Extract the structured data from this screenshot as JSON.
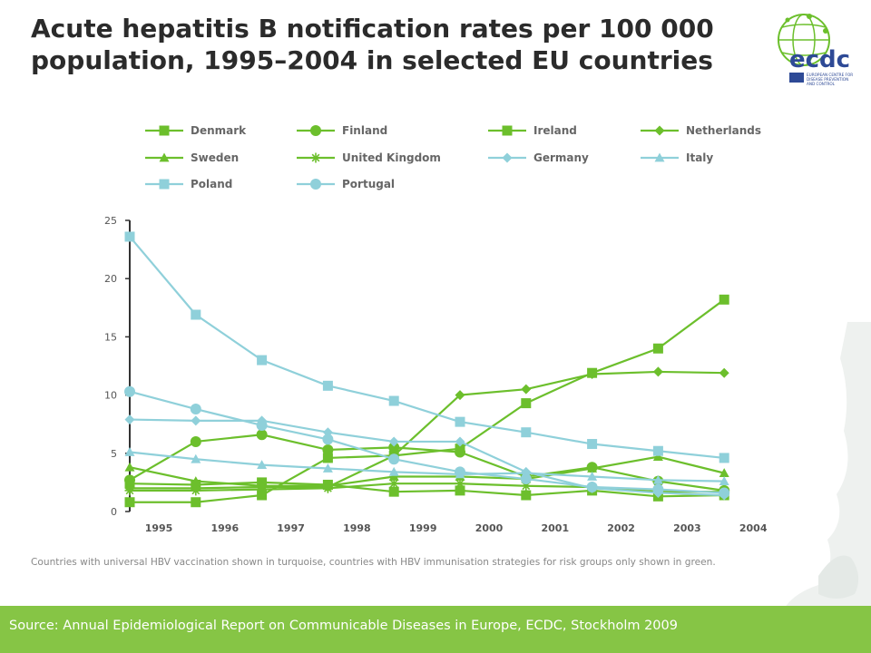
{
  "slide": {
    "title_line1": "Acute hepatitis B notification rates per 100 000",
    "title_line2": "population, 1995–2004 in selected EU countries",
    "source": "Source: Annual Epidemiological Report on Communicable Diseases in Europe, ECDC, Stockholm 2009"
  },
  "logo": {
    "text": "ecdc",
    "subtext": [
      "EUROPEAN CENTRE FOR",
      "DISEASE PREVENTION",
      "AND CONTROL"
    ],
    "brand_color": "#2e4a96",
    "green": "#86c545"
  },
  "colors": {
    "green": "#6cbf2c",
    "turquoise": "#8fd0da",
    "footer": "#86c545"
  },
  "chart_data": {
    "type": "line",
    "title": "",
    "xlabel": "",
    "ylabel": "",
    "x": [
      1995,
      1996,
      1997,
      1998,
      1999,
      2000,
      2001,
      2002,
      2003,
      2004
    ],
    "ylim": [
      0,
      25
    ],
    "yticks": [
      0,
      5,
      10,
      15,
      20,
      25
    ],
    "note": "Countries with universal HBV vaccination shown in turquoise, countries with HBV immunisation strategies for risk groups only shown in green.",
    "legend_position": "top",
    "series": [
      {
        "name": "Denmark",
        "color": "#6cbf2c",
        "marker": "square",
        "values": [
          2.4,
          2.3,
          2.5,
          2.3,
          1.7,
          1.8,
          1.4,
          1.8,
          1.3,
          1.4
        ]
      },
      {
        "name": "Finland",
        "color": "#6cbf2c",
        "marker": "circle",
        "values": [
          2.7,
          6.0,
          6.6,
          5.3,
          5.5,
          5.1,
          3.0,
          3.8,
          2.6,
          1.8
        ]
      },
      {
        "name": "Ireland",
        "color": "#6cbf2c",
        "marker": "square",
        "values": [
          0.8,
          0.8,
          1.4,
          4.6,
          4.8,
          5.4,
          9.3,
          11.9,
          14.0,
          18.2
        ]
      },
      {
        "name": "Netherlands",
        "color": "#6cbf2c",
        "marker": "diamond",
        "values": [
          2.0,
          2.0,
          2.1,
          2.1,
          4.8,
          10.0,
          10.5,
          11.8,
          12.0,
          11.9
        ]
      },
      {
        "name": "Sweden",
        "color": "#6cbf2c",
        "marker": "triangle",
        "values": [
          3.8,
          2.6,
          2.2,
          2.2,
          3.0,
          3.0,
          2.8,
          3.7,
          4.7,
          3.3
        ]
      },
      {
        "name": "United Kingdom",
        "color": "#6cbf2c",
        "marker": "star",
        "values": [
          1.8,
          1.8,
          1.9,
          2.0,
          2.4,
          2.4,
          2.2,
          2.1,
          1.7,
          1.7
        ]
      },
      {
        "name": "Germany",
        "color": "#8fd0da",
        "marker": "diamond",
        "values": [
          7.9,
          7.8,
          7.8,
          6.8,
          6.0,
          6.0,
          3.4,
          2.0,
          1.6,
          1.4
        ]
      },
      {
        "name": "Italy",
        "color": "#8fd0da",
        "marker": "triangle",
        "values": [
          5.1,
          4.5,
          4.0,
          3.7,
          3.4,
          3.2,
          3.3,
          3.0,
          2.7,
          2.6
        ]
      },
      {
        "name": "Poland",
        "color": "#8fd0da",
        "marker": "square",
        "values": [
          23.6,
          16.9,
          13.0,
          10.8,
          9.5,
          7.7,
          6.8,
          5.8,
          5.2,
          4.6
        ]
      },
      {
        "name": "Portugal",
        "color": "#8fd0da",
        "marker": "circle",
        "values": [
          10.3,
          8.8,
          7.4,
          6.2,
          4.5,
          3.4,
          2.8,
          2.1,
          1.9,
          1.6
        ]
      }
    ]
  }
}
